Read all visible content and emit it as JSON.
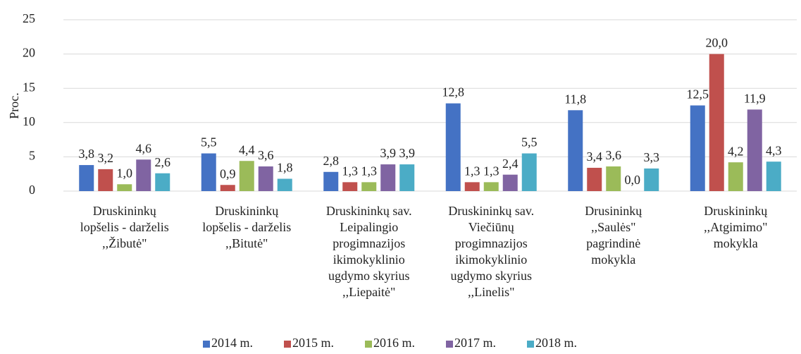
{
  "chart_data": {
    "type": "bar",
    "y_label": "Proc.",
    "categories": [
      [
        "Druskininkų",
        "lopšelis - darželis",
        ",,Žibutė\""
      ],
      [
        "Druskininkų",
        "lopšelis - darželis",
        ",,Bitutė\""
      ],
      [
        "Druskininkų sav.",
        "Leipalingio",
        "progimnazijos",
        "ikimokyklinio",
        "ugdymo skyrius",
        ",,Liepaitė\""
      ],
      [
        "Druskininkų sav.",
        "Viečiūnų",
        "progimnazijos",
        "ikimokyklinio",
        "ugdymo skyrius",
        ",,Linelis\""
      ],
      [
        "Drusininkų",
        ",,Saulės\"",
        "pagrindinė",
        "mokykla"
      ],
      [
        "Druskininkų",
        ",,Atgimimo\"",
        "mokykla"
      ]
    ],
    "series": [
      {
        "name": "2014 m.",
        "color": "#4472c4",
        "values": [
          3.8,
          5.5,
          2.8,
          12.8,
          11.8,
          12.5
        ],
        "value_labels": [
          "3,8",
          "5,5",
          "2,8",
          "12,8",
          "11,8",
          "12,5"
        ]
      },
      {
        "name": "2015 m.",
        "color": "#c0504d",
        "values": [
          3.2,
          0.9,
          1.3,
          1.3,
          3.4,
          20.0
        ],
        "value_labels": [
          "3,2",
          "0,9",
          "1,3",
          "1,3",
          "3,4",
          "20,0"
        ]
      },
      {
        "name": "2016 m.",
        "color": "#9bbb59",
        "values": [
          1.0,
          4.4,
          1.3,
          1.3,
          3.6,
          4.2
        ],
        "value_labels": [
          "1,0",
          "4,4",
          "1,3",
          "1,3",
          "3,6",
          "4,2"
        ]
      },
      {
        "name": "2017 m.",
        "color": "#8064a2",
        "values": [
          4.6,
          3.6,
          3.9,
          2.4,
          0.0,
          11.9
        ],
        "value_labels": [
          "4,6",
          "3,6",
          "3,9",
          "2,4",
          "0,0",
          "11,9"
        ]
      },
      {
        "name": "2018 m.",
        "color": "#4bacc6",
        "values": [
          2.6,
          1.8,
          3.9,
          5.5,
          3.3,
          4.3
        ],
        "value_labels": [
          "2,6",
          "1,8",
          "3,9",
          "5,5",
          "3,3",
          "4,3"
        ]
      }
    ],
    "ylim": [
      0,
      25
    ],
    "yticks": [
      0,
      5,
      10,
      15,
      20,
      25
    ],
    "grid": true,
    "legend": "bottom"
  }
}
